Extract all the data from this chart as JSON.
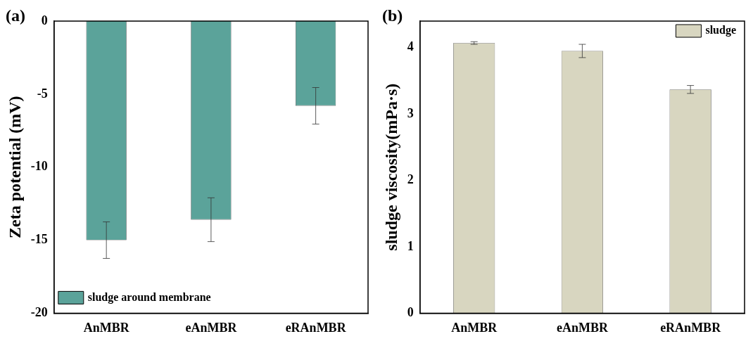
{
  "chart_data": [
    {
      "type": "bar",
      "title": "(a)",
      "ylabel": "Zeta potential (mV)",
      "categories": [
        "AnMBR",
        "eAnMBR",
        "eRAnMBR"
      ],
      "series": [
        {
          "name": "sludge around membrane",
          "color": "#5ba39a",
          "values": [
            -15.0,
            -13.6,
            -5.8
          ],
          "errors": [
            1.25,
            1.5,
            1.25
          ]
        }
      ],
      "ylim": [
        -20,
        0
      ],
      "yticks": [
        -20,
        -15,
        -10,
        -5,
        0
      ],
      "grid": false,
      "legend": "bottom left"
    },
    {
      "type": "bar",
      "title": "(b)",
      "ylabel": "sludge viscosity(mPa·s)",
      "categories": [
        "AnMBR",
        "eAnMBR",
        "eRAnMBR"
      ],
      "series": [
        {
          "name": "sludge",
          "color": "#d8d6c0",
          "values": [
            4.07,
            3.95,
            3.37
          ],
          "errors": [
            0.02,
            0.1,
            0.06
          ]
        }
      ],
      "ylim": [
        0,
        4.4
      ],
      "yticks": [
        0,
        1,
        2,
        3,
        4
      ],
      "grid": false,
      "legend": "top right"
    }
  ]
}
